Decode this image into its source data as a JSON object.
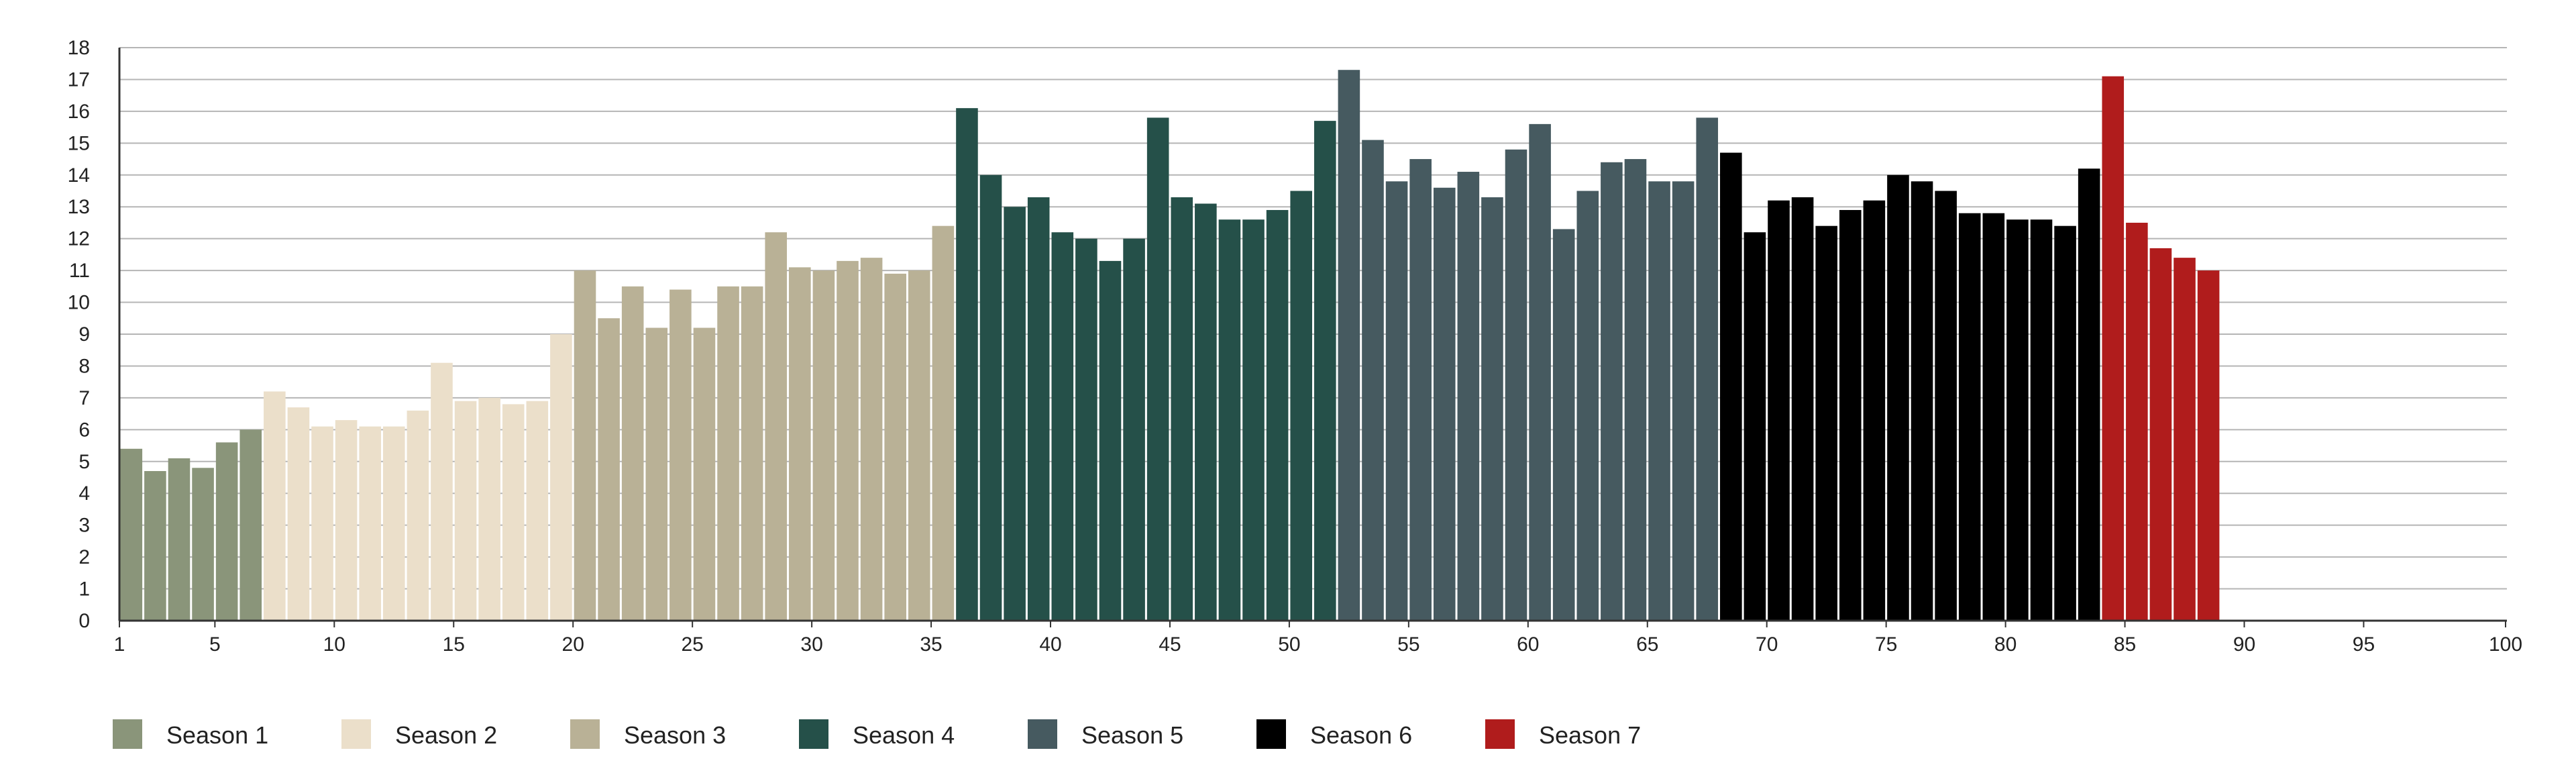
{
  "chart_data": {
    "type": "bar",
    "title": "",
    "xlabel": "",
    "ylabel": "",
    "xlim": [
      1,
      100
    ],
    "ylim": [
      0,
      18
    ],
    "y_ticks": [
      0,
      1,
      2,
      3,
      4,
      5,
      6,
      7,
      8,
      9,
      10,
      11,
      12,
      13,
      14,
      15,
      16,
      17,
      18
    ],
    "x_ticks": [
      1,
      5,
      10,
      15,
      20,
      25,
      30,
      35,
      40,
      45,
      50,
      55,
      60,
      65,
      70,
      75,
      80,
      85,
      90,
      95,
      100
    ],
    "grid": true,
    "legend_position": "bottom-left",
    "series": [
      {
        "name": "Season 1",
        "color": "#8a957a",
        "x": [
          1,
          2,
          3,
          4,
          5,
          6
        ],
        "values": [
          5.4,
          4.7,
          5.1,
          4.8,
          5.6,
          6.0
        ]
      },
      {
        "name": "Season 2",
        "color": "#ebdfca",
        "x": [
          7,
          8,
          9,
          10,
          11,
          12,
          13,
          14,
          15,
          16,
          17,
          18,
          19
        ],
        "values": [
          7.2,
          6.7,
          6.1,
          6.3,
          6.1,
          6.1,
          6.6,
          8.1,
          6.9,
          7.0,
          6.8,
          6.9,
          9.0
        ]
      },
      {
        "name": "Season 3",
        "color": "#b9b196",
        "x": [
          20,
          21,
          22,
          23,
          24,
          25,
          26,
          27,
          28,
          29,
          30,
          31,
          32,
          33,
          34,
          35
        ],
        "values": [
          11.0,
          9.5,
          10.5,
          9.2,
          10.4,
          9.2,
          10.5,
          10.5,
          12.2,
          11.1,
          11.0,
          11.3,
          11.4,
          10.9,
          11.0,
          12.4
        ]
      },
      {
        "name": "Season 4",
        "color": "#255049",
        "x": [
          36,
          37,
          38,
          39,
          40,
          41,
          42,
          43,
          44,
          45,
          46,
          47,
          48,
          49,
          50,
          51
        ],
        "values": [
          16.1,
          14.0,
          13.0,
          13.3,
          12.2,
          12.0,
          11.3,
          12.0,
          15.8,
          13.3,
          13.1,
          12.6,
          12.6,
          12.9,
          13.5,
          15.7
        ]
      },
      {
        "name": "Season 5",
        "color": "#465a60",
        "x": [
          52,
          53,
          54,
          55,
          56,
          57,
          58,
          59,
          60,
          61,
          62,
          63,
          64,
          65,
          66,
          67
        ],
        "values": [
          17.3,
          15.1,
          13.8,
          14.5,
          13.6,
          14.1,
          13.3,
          14.8,
          15.6,
          12.3,
          13.5,
          14.4,
          14.5,
          13.8,
          13.8,
          15.8
        ]
      },
      {
        "name": "Season 6",
        "color": "#000000",
        "x": [
          68,
          69,
          70,
          71,
          72,
          73,
          74,
          75,
          76,
          77,
          78,
          79,
          80,
          81,
          82,
          83
        ],
        "values": [
          14.7,
          12.2,
          13.2,
          13.3,
          12.4,
          12.9,
          13.2,
          14.0,
          13.8,
          13.5,
          12.8,
          12.8,
          12.6,
          12.6,
          12.4,
          14.2
        ]
      },
      {
        "name": "Season 7",
        "color": "#b01c1c",
        "x": [
          84,
          85,
          86,
          87,
          88
        ],
        "values": [
          17.1,
          12.5,
          11.7,
          11.4,
          11.0
        ]
      }
    ]
  }
}
